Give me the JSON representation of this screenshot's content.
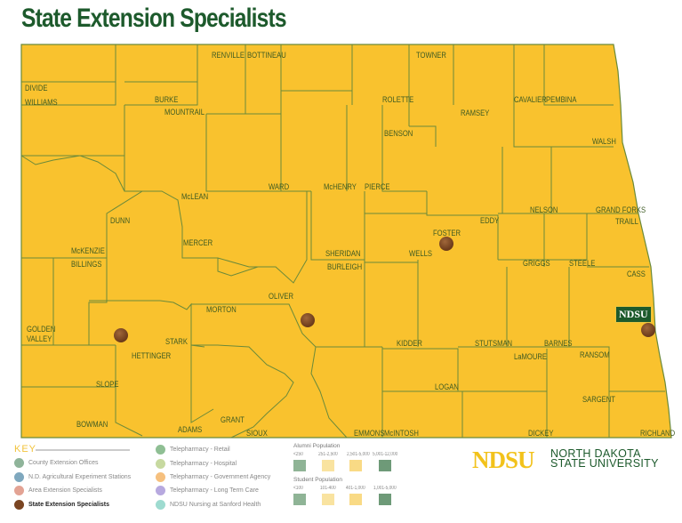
{
  "title": "State Extension Specialists",
  "map": {
    "fill_color": "#F9C22E",
    "border_color": "#6B8A3A",
    "marker_color": "#7A4522",
    "ndsu_label": "NDSU",
    "counties": [
      "DIVIDE",
      "WILLIAMS",
      "BURKE",
      "RENVILLE",
      "BOTTINEAU",
      "MOUNTRAIL",
      "TOWNER",
      "ROLETTE",
      "CAVALIER",
      "PEMBINA",
      "RAMSEY",
      "BENSON",
      "WALSH",
      "WARD",
      "McHENRY",
      "PIERCE",
      "McLEAN",
      "NELSON",
      "GRAND FORKS",
      "EDDY",
      "TRAILL",
      "DUNN",
      "FOSTER",
      "SHERIDAN",
      "WELLS",
      "McKENZIE",
      "MERCER",
      "BILLINGS",
      "GRIGGS",
      "STEELE",
      "CASS",
      "BURLEIGH",
      "OLIVER",
      "MORTON",
      "GOLDEN",
      "VALLEY",
      "STARK",
      "KIDDER",
      "STUTSMAN",
      "BARNES",
      "RANSOM",
      "HETTINGER",
      "LaMOURE",
      "SLOPE",
      "LOGAN",
      "SARGENT",
      "GRANT",
      "BOWMAN",
      "ADAMS",
      "SIOUX",
      "EMMONS",
      "McINTOSH",
      "DICKEY",
      "RICHLAND"
    ],
    "state_extension_specialist_markers": [
      "FOSTER",
      "BURLEIGH",
      "STARK",
      "CASS"
    ]
  },
  "key": {
    "title": "KEY",
    "items": [
      {
        "label": "County Extension Offices",
        "color": "#8FB49A"
      },
      {
        "label": "N.D. Agricultural Experiment Stations",
        "color": "#7FA8BE"
      },
      {
        "label": "Area Extension Specialists",
        "color": "#E3A394"
      },
      {
        "label": "State Extension Specialists",
        "color": "#7A4522"
      },
      {
        "label": "Telepharmacy - Retail",
        "color": "#8FBF94"
      },
      {
        "label": "Telepharmacy - Hospital",
        "color": "#C7D9A0"
      },
      {
        "label": "Telepharmacy - Government Agency",
        "color": "#F6C07E"
      },
      {
        "label": "Telepharmacy - Long Term Care",
        "color": "#B7A9DF"
      },
      {
        "label": "NDSU Nursing at Sanford Health",
        "color": "#9EDBD0"
      }
    ]
  },
  "alumni_population": {
    "title": "Alumni Population",
    "ranges": [
      {
        "label": "<250",
        "color": "#8FB496"
      },
      {
        "label": "251-2,500",
        "color": "#F9E3A0"
      },
      {
        "label": "2,501-5,000",
        "color": "#F9DA85"
      },
      {
        "label": "5,001-12,000",
        "color": "#6E9A78"
      }
    ]
  },
  "student_population": {
    "title": "Student Population",
    "ranges": [
      {
        "label": "<100",
        "color": "#8FB496"
      },
      {
        "label": "101-400",
        "color": "#F9E3A0"
      },
      {
        "label": "401-1,000",
        "color": "#F9DA85"
      },
      {
        "label": "1,001-5,000",
        "color": "#6E9A78"
      }
    ]
  },
  "logo": {
    "mark": "NDSU",
    "line1": "NORTH DAKOTA",
    "line2": "STATE UNIVERSITY"
  }
}
